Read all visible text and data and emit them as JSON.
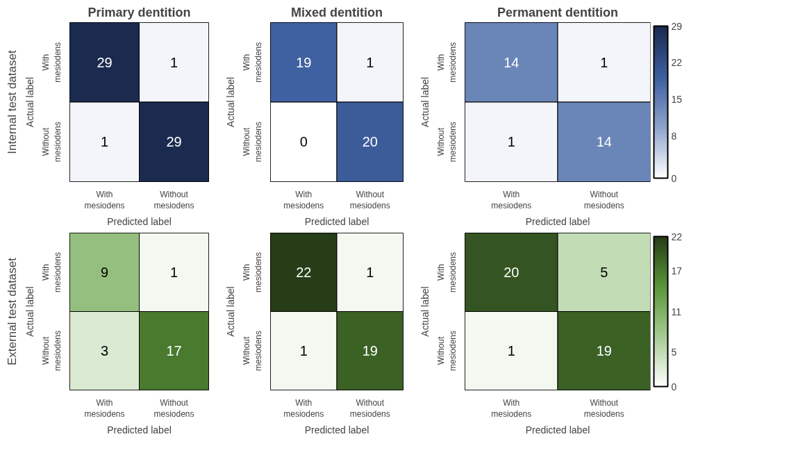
{
  "chart_data": [
    {
      "type": "heatmap",
      "title": "Primary dentition",
      "xlabel": "Predicted label",
      "ylabel": "Actual label",
      "annotations": [
        "Internal test dataset"
      ],
      "categories": [
        "With\nmesiodens",
        "Without\nmesiodens"
      ],
      "y_categories": [
        "With\nmesiodens",
        "Without\nmesiodens"
      ],
      "cells": [
        [
          29,
          1
        ],
        [
          1,
          29
        ]
      ],
      "colors": [
        "#ffffff",
        "#8ea3cc",
        "#3d5f9f",
        "#1b2a4f"
      ],
      "data_labels": true
    },
    {
      "type": "heatmap",
      "title": "Mixed dentition",
      "xlabel": "Predicted label",
      "ylabel": "Actual label",
      "categories": [
        "With\nmesiodens",
        "Without\nmesiodens"
      ],
      "y_categories": [
        "With\nmesiodens",
        "Without\nmesiodens"
      ],
      "cells": [
        [
          19,
          1
        ],
        [
          0,
          20
        ]
      ],
      "colors": [
        "#ffffff",
        "#8ea3cc",
        "#3d5f9f",
        "#1b2a4f"
      ],
      "data_labels": true
    },
    {
      "type": "heatmap",
      "title": "Permanent dentition",
      "xlabel": "Predicted label",
      "ylabel": "Actual label",
      "categories": [
        "With\nmesiodens",
        "Without\nmesiodens"
      ],
      "y_categories": [
        "With\nmesiodens",
        "Without\nmesiodens"
      ],
      "cells": [
        [
          14,
          1
        ],
        [
          1,
          14
        ]
      ],
      "clim": [
        0,
        29
      ],
      "cticks": [
        0,
        8,
        15,
        22,
        29
      ],
      "colors": [
        "#ffffff",
        "#8ea3cc",
        "#3d5f9f",
        "#1b2a4f"
      ],
      "data_labels": true
    },
    {
      "type": "heatmap",
      "xlabel": "Predicted label",
      "ylabel": "Actual label",
      "annotations": [
        "External test dataset"
      ],
      "categories": [
        "With\nmesiodens",
        "Without\nmesiodens"
      ],
      "y_categories": [
        "With\nmesiodens",
        "Without\nmesiodens"
      ],
      "cells": [
        [
          9,
          1
        ],
        [
          3,
          17
        ]
      ],
      "colors": [
        "#ffffff",
        "#a6cb94",
        "#5a9638",
        "#263d18"
      ],
      "data_labels": true
    },
    {
      "type": "heatmap",
      "xlabel": "Predicted label",
      "ylabel": "Actual label",
      "categories": [
        "With\nmesiodens",
        "Without\nmesiodens"
      ],
      "y_categories": [
        "With\nmesiodens",
        "Without\nmesiodens"
      ],
      "cells": [
        [
          22,
          1
        ],
        [
          1,
          19
        ]
      ],
      "colors": [
        "#ffffff",
        "#a6cb94",
        "#5a9638",
        "#263d18"
      ],
      "data_labels": true
    },
    {
      "type": "heatmap",
      "xlabel": "Predicted label",
      "ylabel": "Actual label",
      "categories": [
        "With\nmesiodens",
        "Without\nmesiodens"
      ],
      "y_categories": [
        "With\nmesiodens",
        "Without\nmesiodens"
      ],
      "cells": [
        [
          20,
          5
        ],
        [
          1,
          19
        ]
      ],
      "clim": [
        0,
        22
      ],
      "cticks": [
        0,
        5,
        11,
        17,
        22
      ],
      "colors": [
        "#ffffff",
        "#a6cb94",
        "#5a9638",
        "#263d18"
      ],
      "data_labels": true
    }
  ]
}
